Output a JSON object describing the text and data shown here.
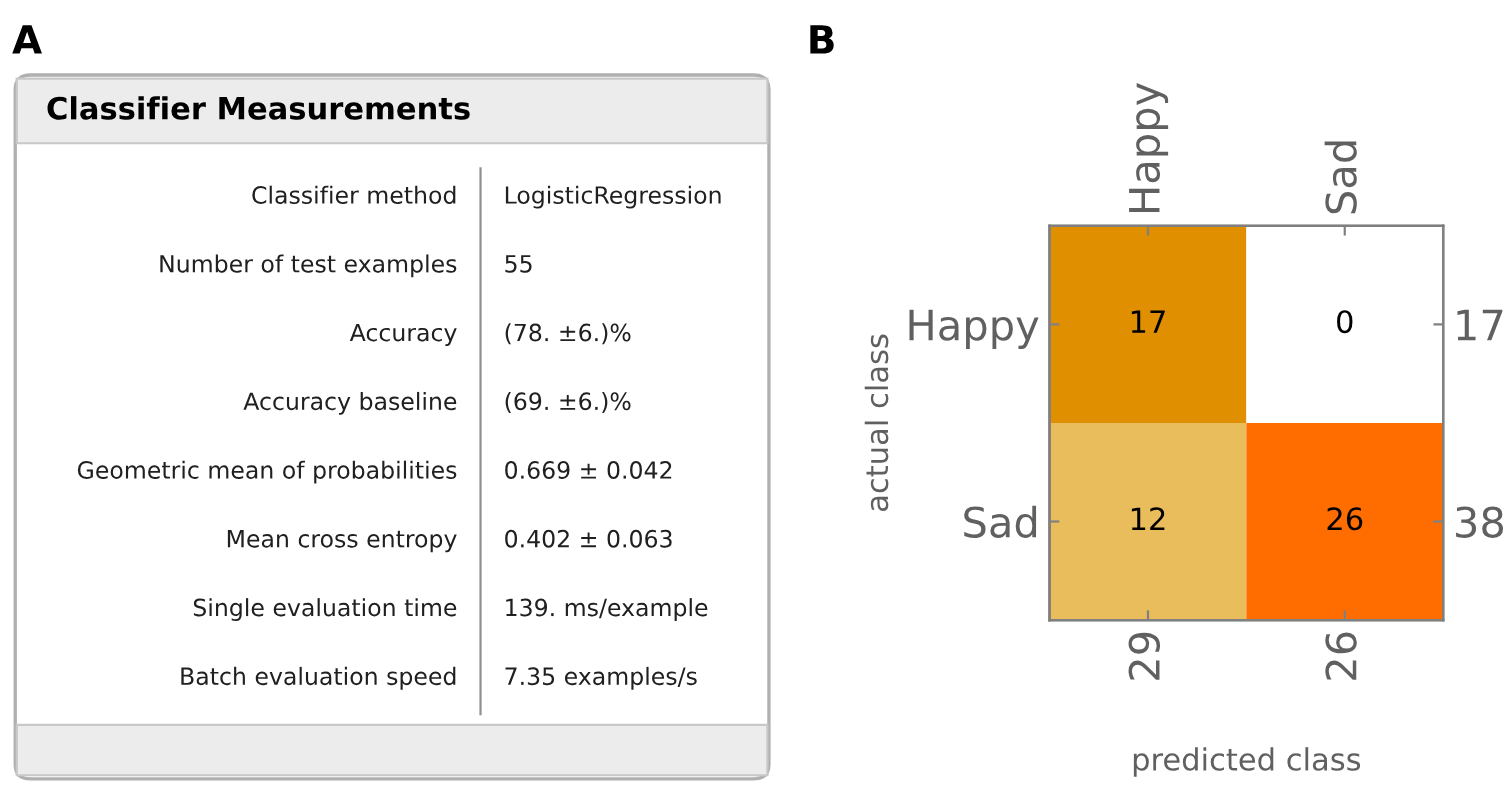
{
  "chart_data": [
    {
      "type": "other",
      "title": "Classifier Measurements",
      "annotations": [
        "A"
      ],
      "y_categories": [
        "Classifier method",
        "Number of test examples",
        "Accuracy",
        "Accuracy baseline",
        "Geometric mean of probabilities",
        "Mean cross entropy",
        "Single evaluation time",
        "Batch evaluation speed"
      ],
      "cell_labels": [
        [
          "LogisticRegression"
        ],
        [
          "55"
        ],
        [
          "(78. ±6.)%"
        ],
        [
          "(69. ±6.)%"
        ],
        [
          "0.669 ± 0.042"
        ],
        [
          "0.402 ± 0.063"
        ],
        [
          "139. ms/example"
        ],
        [
          "7.35 examples/s"
        ]
      ]
    },
    {
      "type": "heatmap",
      "annotations": [
        "B"
      ],
      "xlabel": "predicted class",
      "ylabel": "actual class",
      "categories": [
        "Happy",
        "Sad"
      ],
      "y_categories": [
        "Happy",
        "Sad"
      ],
      "y2_categories": [
        "17",
        "38"
      ],
      "cells": [
        [
          17,
          0
        ],
        [
          12,
          26
        ]
      ],
      "colors": [
        "#e08f00",
        "#ffffff",
        "#e9bd5c",
        "#ff6d00"
      ],
      "totals": [
        "29",
        "26"
      ],
      "data_labels": true
    }
  ]
}
